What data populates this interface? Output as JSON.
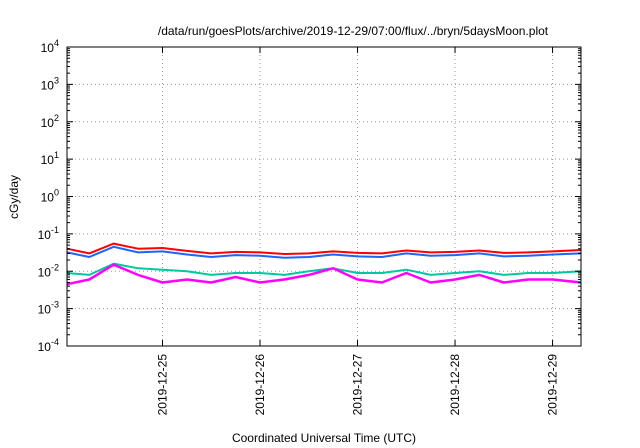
{
  "chart_data": {
    "type": "line",
    "title": "/data/run/goesPlots/archive/2019-12-29/07:00/flux/../bryn/5daysMoon.plot",
    "xlabel": "Coordinated Universal Time (UTC)",
    "ylabel": "cGy/day",
    "yscale": "log",
    "ylim": [
      0.0001,
      10000
    ],
    "xlim": [
      "2019-12-24T00:30",
      "2019-12-29T07:00"
    ],
    "grid": true,
    "y_ticks": [
      {
        "value": 0.0001,
        "base": "10",
        "exp": "-4"
      },
      {
        "value": 0.001,
        "base": "10",
        "exp": "-3"
      },
      {
        "value": 0.01,
        "base": "10",
        "exp": "-2"
      },
      {
        "value": 0.1,
        "base": "10",
        "exp": "-1"
      },
      {
        "value": 1,
        "base": "10",
        "exp": "0"
      },
      {
        "value": 10,
        "base": "10",
        "exp": "1"
      },
      {
        "value": 100,
        "base": "10",
        "exp": "2"
      },
      {
        "value": 1000,
        "base": "10",
        "exp": "3"
      },
      {
        "value": 10000,
        "base": "10",
        "exp": "4"
      }
    ],
    "x_ticks": [
      {
        "value": "2019-12-25T00:00",
        "label": "2019-12-25"
      },
      {
        "value": "2019-12-26T00:00",
        "label": "2019-12-26"
      },
      {
        "value": "2019-12-27T00:00",
        "label": "2019-12-27"
      },
      {
        "value": "2019-12-28T00:00",
        "label": "2019-12-28"
      },
      {
        "value": "2019-12-29T00:00",
        "label": "2019-12-29"
      }
    ],
    "x": [
      "2019-12-24T00:30",
      "2019-12-24T06:00",
      "2019-12-24T12:00",
      "2019-12-24T18:00",
      "2019-12-25T00:00",
      "2019-12-25T06:00",
      "2019-12-25T12:00",
      "2019-12-25T18:00",
      "2019-12-26T00:00",
      "2019-12-26T06:00",
      "2019-12-26T12:00",
      "2019-12-26T18:00",
      "2019-12-27T00:00",
      "2019-12-27T06:00",
      "2019-12-27T12:00",
      "2019-12-27T18:00",
      "2019-12-28T00:00",
      "2019-12-28T06:00",
      "2019-12-28T12:00",
      "2019-12-28T18:00",
      "2019-12-29T00:00",
      "2019-12-29T07:00"
    ],
    "series": [
      {
        "color": "#ff0000",
        "values": [
          0.04,
          0.03,
          0.055,
          0.04,
          0.042,
          0.035,
          0.03,
          0.033,
          0.032,
          0.029,
          0.03,
          0.034,
          0.031,
          0.03,
          0.036,
          0.032,
          0.033,
          0.036,
          0.031,
          0.032,
          0.034,
          0.037
        ]
      },
      {
        "color": "#1e64ff",
        "values": [
          0.032,
          0.024,
          0.045,
          0.032,
          0.034,
          0.028,
          0.024,
          0.027,
          0.026,
          0.023,
          0.024,
          0.028,
          0.025,
          0.024,
          0.03,
          0.026,
          0.027,
          0.03,
          0.025,
          0.026,
          0.028,
          0.03
        ]
      },
      {
        "color": "#00c8a0",
        "values": [
          0.009,
          0.008,
          0.016,
          0.012,
          0.011,
          0.01,
          0.008,
          0.009,
          0.009,
          0.008,
          0.01,
          0.012,
          0.009,
          0.009,
          0.011,
          0.008,
          0.009,
          0.01,
          0.008,
          0.009,
          0.009,
          0.01
        ]
      },
      {
        "color": "#ff00ff",
        "values": [
          0.0045,
          0.006,
          0.015,
          0.008,
          0.005,
          0.006,
          0.005,
          0.007,
          0.005,
          0.006,
          0.008,
          0.012,
          0.006,
          0.005,
          0.009,
          0.005,
          0.006,
          0.008,
          0.005,
          0.006,
          0.006,
          0.005
        ]
      }
    ]
  }
}
